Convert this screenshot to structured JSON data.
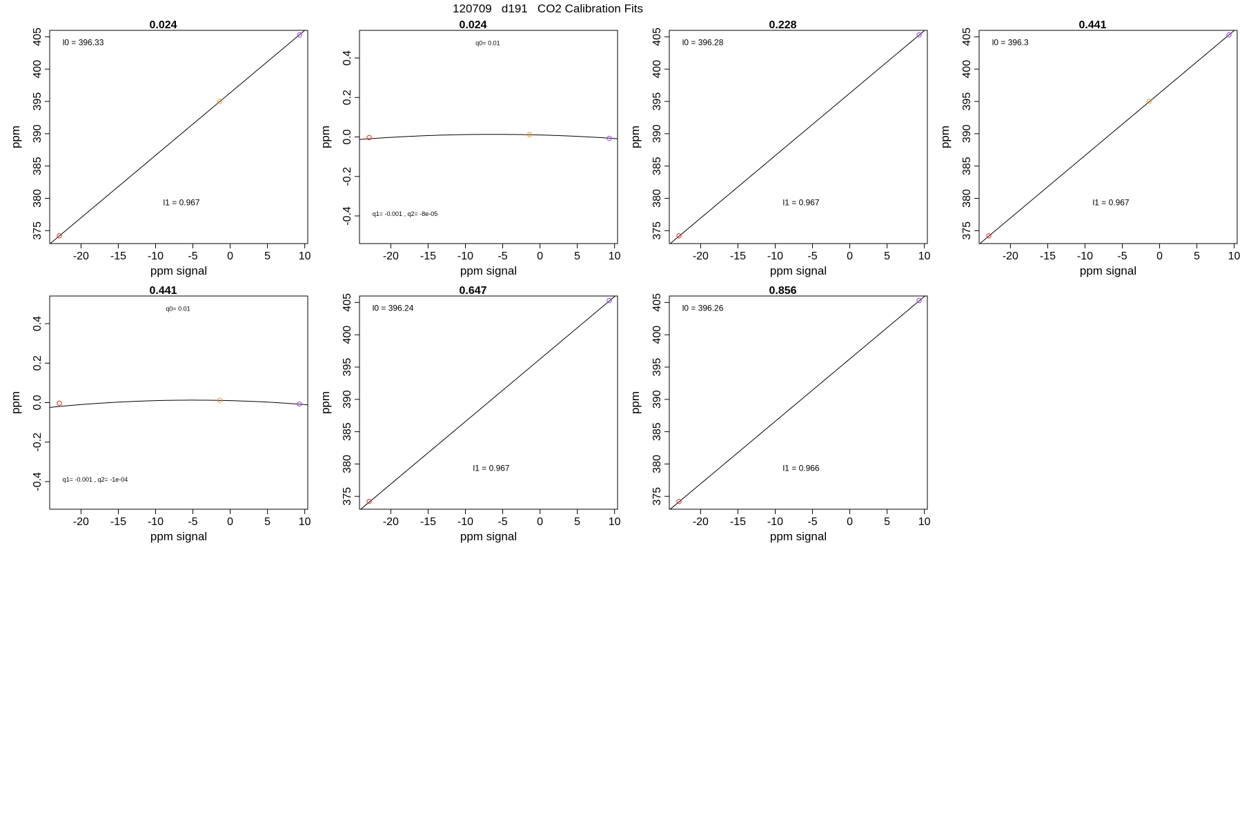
{
  "figure_title": "120709   d191   CO2 Calibration Fits",
  "colors": {
    "point_low": "#e8382e",
    "point_mid": "#f0a030",
    "point_high": "#9b4fe0",
    "line": "#000000",
    "frame": "#000000"
  },
  "chart_data": [
    {
      "type": "scatter",
      "title": "0.024",
      "xlabel": "ppm signal",
      "ylabel": "ppm",
      "xlim": [
        -24.2,
        10.4
      ],
      "ylim": [
        373.0,
        406.0
      ],
      "xticks": [
        -20,
        -15,
        -10,
        -5,
        0,
        5,
        10
      ],
      "yticks": [
        375,
        380,
        385,
        390,
        395,
        400,
        405
      ],
      "points": [
        {
          "x": -22.9,
          "y": 374.2,
          "color": "#e8382e"
        },
        {
          "x": -1.4,
          "y": 395.0,
          "color": "#f0a030"
        },
        {
          "x": 9.3,
          "y": 405.3,
          "color": "#9b4fe0"
        }
      ],
      "fit": {
        "kind": "linear",
        "intercept": 396.33,
        "slope": 0.967
      },
      "annotations": [
        "l0 =  396.33",
        "l1 =  0.967"
      ]
    },
    {
      "type": "scatter",
      "title": "0.024",
      "xlabel": "ppm signal",
      "ylabel": "ppm",
      "xlim": [
        -24.2,
        10.4
      ],
      "ylim": [
        -0.54,
        0.54
      ],
      "xticks": [
        -20,
        -15,
        -10,
        -5,
        0,
        5,
        10
      ],
      "yticks": [
        -0.4,
        -0.2,
        0.0,
        0.2,
        0.4
      ],
      "ytick_labels": [
        "-0.4",
        "-0.2",
        "0.0",
        "0.2",
        "0.4"
      ],
      "points": [
        {
          "x": -22.9,
          "y": -0.003,
          "color": "#e8382e"
        },
        {
          "x": -1.4,
          "y": 0.012,
          "color": "#f0a030"
        },
        {
          "x": 9.3,
          "y": -0.007,
          "color": "#9b4fe0"
        }
      ],
      "fit": {
        "kind": "quadratic",
        "q0": 0.01,
        "q1": -0.001,
        "q2": -8e-05
      },
      "annotations": [
        "q0= 0.01",
        "q1= -0.001 , q2= -8e-05"
      ]
    },
    {
      "type": "scatter",
      "title": "0.228",
      "xlabel": "ppm signal",
      "ylabel": "ppm",
      "xlim": [
        -24.2,
        10.4
      ],
      "ylim": [
        373.0,
        406.0
      ],
      "xticks": [
        -20,
        -15,
        -10,
        -5,
        0,
        5,
        10
      ],
      "yticks": [
        375,
        380,
        385,
        390,
        395,
        400,
        405
      ],
      "points": [
        {
          "x": -22.9,
          "y": 374.2,
          "color": "#e8382e"
        },
        {
          "x": 9.3,
          "y": 405.3,
          "color": "#9b4fe0"
        }
      ],
      "fit": {
        "kind": "linear",
        "intercept": 396.28,
        "slope": 0.967
      },
      "annotations": [
        "l0 =  396.28",
        "l1 =  0.967"
      ]
    },
    {
      "type": "scatter",
      "title": "0.441",
      "xlabel": "ppm signal",
      "ylabel": "ppm",
      "xlim": [
        -24.2,
        10.4
      ],
      "ylim": [
        373.0,
        406.0
      ],
      "xticks": [
        -20,
        -15,
        -10,
        -5,
        0,
        5,
        10
      ],
      "yticks": [
        375,
        380,
        385,
        390,
        395,
        400,
        405
      ],
      "points": [
        {
          "x": -22.9,
          "y": 374.2,
          "color": "#e8382e"
        },
        {
          "x": -1.4,
          "y": 395.0,
          "color": "#f0a030"
        },
        {
          "x": 9.3,
          "y": 405.3,
          "color": "#9b4fe0"
        }
      ],
      "fit": {
        "kind": "linear",
        "intercept": 396.3,
        "slope": 0.967
      },
      "annotations": [
        "l0 =  396.3",
        "l1 =  0.967"
      ]
    },
    {
      "type": "scatter",
      "title": "0.441",
      "xlabel": "ppm signal",
      "ylabel": "ppm",
      "xlim": [
        -24.2,
        10.4
      ],
      "ylim": [
        -0.54,
        0.54
      ],
      "xticks": [
        -20,
        -15,
        -10,
        -5,
        0,
        5,
        10
      ],
      "yticks": [
        -0.4,
        -0.2,
        0.0,
        0.2,
        0.4
      ],
      "ytick_labels": [
        "-0.4",
        "-0.2",
        "0.0",
        "0.2",
        "0.4"
      ],
      "points": [
        {
          "x": -22.9,
          "y": -0.003,
          "color": "#e8382e"
        },
        {
          "x": -1.4,
          "y": 0.012,
          "color": "#f0a030"
        },
        {
          "x": 9.3,
          "y": -0.007,
          "color": "#9b4fe0"
        }
      ],
      "fit": {
        "kind": "quadratic",
        "q0": 0.01,
        "q1": -0.001,
        "q2": -0.0001
      },
      "annotations": [
        "q0= 0.01",
        "q1= -0.001 , q2= -1e-04"
      ]
    },
    {
      "type": "scatter",
      "title": "0.647",
      "xlabel": "ppm signal",
      "ylabel": "ppm",
      "xlim": [
        -24.2,
        10.4
      ],
      "ylim": [
        373.0,
        406.0
      ],
      "xticks": [
        -20,
        -15,
        -10,
        -5,
        0,
        5,
        10
      ],
      "yticks": [
        375,
        380,
        385,
        390,
        395,
        400,
        405
      ],
      "points": [
        {
          "x": -22.9,
          "y": 374.2,
          "color": "#e8382e"
        },
        {
          "x": 9.3,
          "y": 405.3,
          "color": "#9b4fe0"
        }
      ],
      "fit": {
        "kind": "linear",
        "intercept": 396.24,
        "slope": 0.967
      },
      "annotations": [
        "l0 =  396.24",
        "l1 =  0.967"
      ]
    },
    {
      "type": "scatter",
      "title": "0.856",
      "xlabel": "ppm signal",
      "ylabel": "ppm",
      "xlim": [
        -24.2,
        10.4
      ],
      "ylim": [
        373.0,
        406.0
      ],
      "xticks": [
        -20,
        -15,
        -10,
        -5,
        0,
        5,
        10
      ],
      "yticks": [
        375,
        380,
        385,
        390,
        395,
        400,
        405
      ],
      "points": [
        {
          "x": -22.9,
          "y": 374.2,
          "color": "#e8382e"
        },
        {
          "x": 9.3,
          "y": 405.3,
          "color": "#9b4fe0"
        }
      ],
      "fit": {
        "kind": "linear",
        "intercept": 396.26,
        "slope": 0.966
      },
      "annotations": [
        "l0 =  396.26",
        "l1 =  0.966"
      ]
    }
  ]
}
